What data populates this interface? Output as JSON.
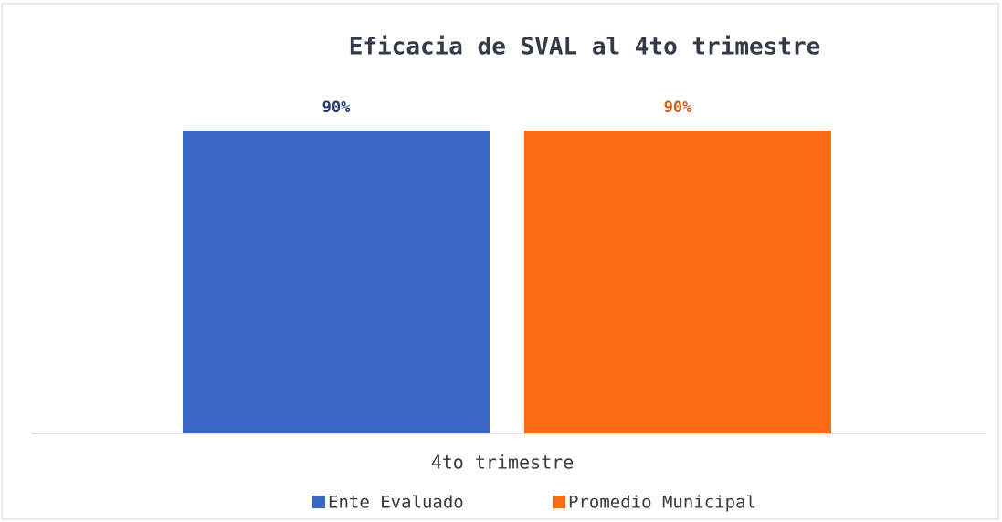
{
  "chart_data": {
    "type": "bar",
    "title": "Eficacia de SVAL al 4to trimestre",
    "categories": [
      "4to trimestre"
    ],
    "series": [
      {
        "name": "Ente Evaluado",
        "color": "#3a66c4",
        "values": [
          90
        ],
        "value_labels": [
          "90%"
        ],
        "label_color": "#1f3a6e"
      },
      {
        "name": "Promedio Municipal",
        "color": "#fb6a14",
        "values": [
          90
        ],
        "value_labels": [
          "90%"
        ],
        "label_color": "#d2601a"
      }
    ],
    "ylim": [
      0,
      100
    ]
  }
}
